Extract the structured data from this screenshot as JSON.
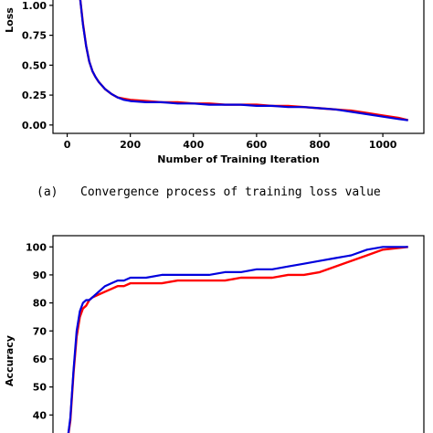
{
  "caption": {
    "label": "(a)",
    "text": "Convergence process of training loss value"
  },
  "colors": {
    "series_a": "#ff0000",
    "series_b": "#0000dd",
    "axes": "#000000"
  },
  "chart_data": [
    {
      "type": "line",
      "title": "",
      "xlabel": "Number of Training Iteration",
      "ylabel": "Loss",
      "xlim": [
        -45,
        1130
      ],
      "ylim": [
        -0.07,
        1.06
      ],
      "xticks": [
        0,
        200,
        400,
        600,
        800,
        1000
      ],
      "xtick_labels": [
        "0",
        "200",
        "400",
        "600",
        "800",
        "1000"
      ],
      "yticks": [
        0.0,
        0.25,
        0.5,
        0.75,
        1.0
      ],
      "ytick_labels": [
        "0.00",
        "0.25",
        "0.50",
        "0.75",
        "1.00"
      ],
      "grid": false,
      "series": [
        {
          "color": "#ff0000",
          "x": [
            40,
            50,
            60,
            70,
            80,
            90,
            100,
            120,
            140,
            160,
            180,
            200,
            250,
            300,
            350,
            400,
            450,
            500,
            550,
            600,
            650,
            700,
            750,
            800,
            850,
            900,
            950,
            1000,
            1050,
            1080
          ],
          "y": [
            1.08,
            0.85,
            0.66,
            0.53,
            0.45,
            0.4,
            0.36,
            0.3,
            0.26,
            0.23,
            0.22,
            0.21,
            0.2,
            0.19,
            0.19,
            0.18,
            0.18,
            0.17,
            0.17,
            0.17,
            0.16,
            0.16,
            0.15,
            0.14,
            0.13,
            0.12,
            0.1,
            0.08,
            0.06,
            0.04
          ]
        },
        {
          "color": "#0000dd",
          "x": [
            40,
            50,
            60,
            70,
            80,
            90,
            100,
            120,
            140,
            160,
            180,
            200,
            250,
            300,
            350,
            400,
            450,
            500,
            550,
            600,
            650,
            700,
            750,
            800,
            850,
            900,
            950,
            1000,
            1050,
            1080
          ],
          "y": [
            1.08,
            0.84,
            0.66,
            0.53,
            0.45,
            0.4,
            0.36,
            0.3,
            0.26,
            0.23,
            0.21,
            0.2,
            0.19,
            0.19,
            0.18,
            0.18,
            0.17,
            0.17,
            0.17,
            0.16,
            0.16,
            0.15,
            0.15,
            0.14,
            0.13,
            0.11,
            0.09,
            0.07,
            0.05,
            0.04
          ]
        }
      ]
    },
    {
      "type": "line",
      "title": "",
      "xlabel": "",
      "ylabel": "Accuracy",
      "xlim": [
        -45,
        1130
      ],
      "ylim": [
        29,
        104
      ],
      "yticks": [
        40,
        50,
        60,
        70,
        80,
        90,
        100
      ],
      "ytick_labels": [
        "40",
        "50",
        "60",
        "70",
        "80",
        "90",
        "100"
      ],
      "grid": false,
      "series": [
        {
          "color": "#ff0000",
          "x": [
            0,
            10,
            20,
            30,
            40,
            50,
            60,
            70,
            80,
            100,
            120,
            140,
            160,
            180,
            200,
            250,
            300,
            350,
            400,
            450,
            500,
            550,
            600,
            650,
            700,
            750,
            800,
            850,
            900,
            950,
            1000,
            1080
          ],
          "y": [
            30,
            38,
            55,
            68,
            75,
            78,
            79,
            81,
            82,
            83,
            84,
            85,
            86,
            86,
            87,
            87,
            87,
            88,
            88,
            88,
            88,
            89,
            89,
            89,
            90,
            90,
            91,
            93,
            95,
            97,
            99,
            100
          ]
        },
        {
          "color": "#0000dd",
          "x": [
            0,
            10,
            20,
            30,
            40,
            50,
            60,
            70,
            80,
            100,
            120,
            140,
            160,
            180,
            200,
            250,
            300,
            350,
            400,
            450,
            500,
            550,
            600,
            650,
            700,
            750,
            800,
            850,
            900,
            950,
            1000,
            1080
          ],
          "y": [
            30,
            39,
            56,
            70,
            77,
            80,
            81,
            81,
            82,
            84,
            86,
            87,
            88,
            88,
            89,
            89,
            90,
            90,
            90,
            90,
            91,
            91,
            92,
            92,
            93,
            94,
            95,
            96,
            97,
            99,
            100,
            100
          ]
        }
      ]
    }
  ]
}
